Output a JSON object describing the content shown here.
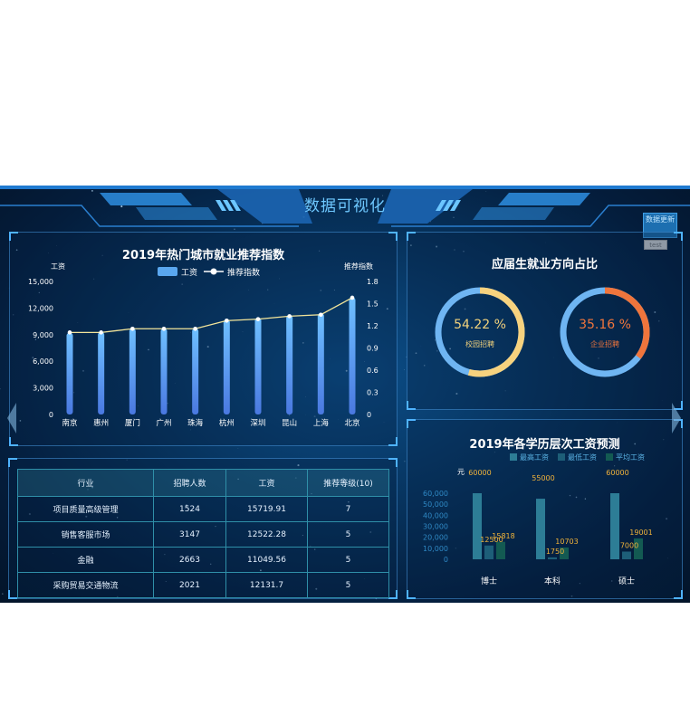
{
  "header": {
    "title": "数据可视化",
    "update_button": "数据更新",
    "test_button": "test"
  },
  "colors": {
    "bar_blue": "#5aa7ef",
    "line_yellow": "#f3e59a",
    "orange_ring": "#f0753c",
    "ring_yellow": "#f7d27e",
    "ring_blue": "#6fb5f2",
    "bar_teal": "#2d7d96",
    "bar_dark": "#1d5e78",
    "bar_green": "#135a52",
    "label_orange": "#f0b33a"
  },
  "city_chart": {
    "title": "2019年热门城市就业推荐指数",
    "legend": {
      "salary": "工资",
      "index": "推荐指数"
    },
    "chart_data": {
      "type": "bar",
      "categories": [
        "南京",
        "惠州",
        "厦门",
        "广州",
        "珠海",
        "杭州",
        "深圳",
        "昆山",
        "上海",
        "北京"
      ],
      "series": [
        {
          "name": "工资",
          "values": [
            9200,
            9300,
            9700,
            9700,
            9700,
            10700,
            10900,
            11200,
            11400,
            13200
          ]
        },
        {
          "name": "推荐指数",
          "values": [
            1.11,
            1.11,
            1.16,
            1.16,
            1.16,
            1.27,
            1.29,
            1.33,
            1.35,
            1.58
          ]
        }
      ],
      "ylabel": "工资",
      "y2label": "推荐指数",
      "ylim": [
        0,
        15000
      ],
      "y2lim": [
        0,
        1.8
      ],
      "yticks": [
        "15,000",
        "12,000",
        "9,000",
        "6,000",
        "3,000",
        "0"
      ],
      "y2ticks": [
        "1.8",
        "1.5",
        "1.2",
        "0.9",
        "0.6",
        "0.3",
        "0"
      ]
    }
  },
  "ratio_panel": {
    "title": "应届生就业方向占比",
    "rings": [
      {
        "percent_text": "54.22 %",
        "label": "校园招聘",
        "value": 54.22
      },
      {
        "percent_text": "35.16 %",
        "label": "企业招聘",
        "value": 35.16
      }
    ]
  },
  "table": {
    "headers": [
      "行业",
      "招聘人数",
      "工资",
      "推荐等级(10)"
    ],
    "rows": [
      [
        "项目质量高级管理",
        "1524",
        "15719.91",
        "7"
      ],
      [
        "销售客服市场",
        "3147",
        "12522.28",
        "5"
      ],
      [
        "金融",
        "2663",
        "11049.56",
        "5"
      ],
      [
        "采购贸易交通物流",
        "2021",
        "12131.7",
        "5"
      ]
    ]
  },
  "edu_chart": {
    "title": "2019年各学历层次工资预测",
    "unit": "元",
    "legend": [
      "最高工资",
      "最低工资",
      "平均工资"
    ],
    "chart_data": {
      "type": "bar",
      "categories": [
        "博士",
        "本科",
        "硕士"
      ],
      "series": [
        {
          "name": "最高工资",
          "values": [
            60000,
            55000,
            60000
          ]
        },
        {
          "name": "最低工资",
          "values": [
            12500,
            1750,
            7000
          ]
        },
        {
          "name": "平均工资",
          "values": [
            15818,
            10703,
            19001
          ]
        }
      ],
      "ylim": [
        0,
        60000
      ],
      "yticks": [
        "60,000",
        "50,000",
        "40,000",
        "30,000",
        "20,000",
        "10,000",
        "0"
      ],
      "value_labels": [
        [
          "60000",
          "12500",
          "15818"
        ],
        [
          "55000",
          "1750",
          "10703"
        ],
        [
          "60000",
          "7000",
          "19001"
        ]
      ]
    }
  }
}
